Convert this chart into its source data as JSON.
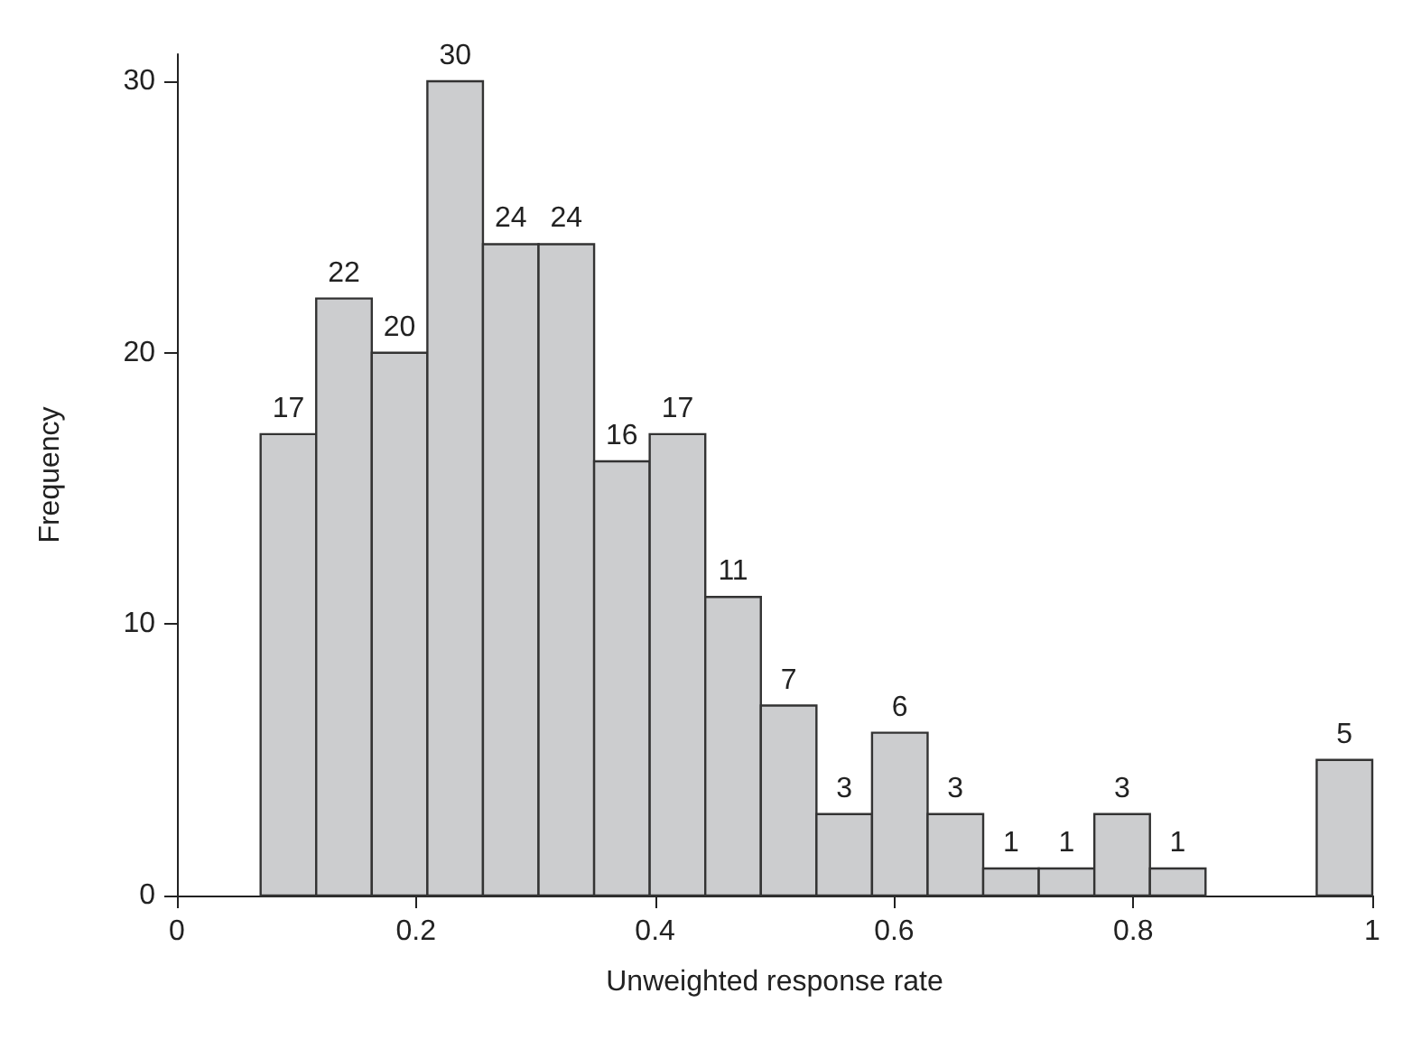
{
  "chart_data": {
    "type": "histogram",
    "xlabel": "Unweighted response rate",
    "ylabel": "Frequency",
    "bins": [
      0.07,
      0.1165,
      0.163,
      0.2095,
      0.256,
      0.3025,
      0.349,
      0.3955,
      0.442,
      0.4885,
      0.535,
      0.5815,
      0.628,
      0.6745,
      0.721,
      0.7675,
      0.814,
      0.8605,
      0.907,
      0.9535,
      1.0
    ],
    "values": [
      17,
      22,
      20,
      30,
      24,
      24,
      16,
      17,
      11,
      7,
      3,
      6,
      3,
      1,
      1,
      3,
      1,
      0,
      0,
      5
    ],
    "value_labels": [
      "17",
      "22",
      "20",
      "30",
      "24",
      "24",
      "16",
      "17",
      "11",
      "7",
      "3",
      "6",
      "3",
      "1",
      "1",
      "3",
      "1",
      null,
      null,
      "5"
    ],
    "color": "#cccdcf",
    "xlim": [
      0,
      1
    ],
    "xticks": [
      0,
      0.2,
      0.4,
      0.6,
      0.8,
      1
    ],
    "ylim": [
      0,
      31
    ],
    "yticks": [
      0,
      10,
      20,
      30
    ],
    "grid": false
  }
}
